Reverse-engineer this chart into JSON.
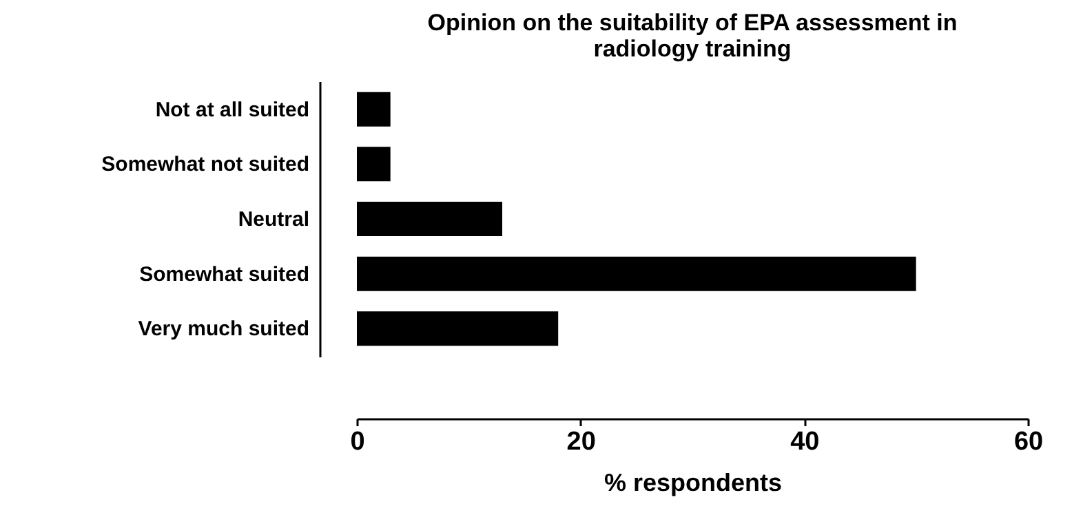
{
  "chart_data": {
    "type": "bar",
    "orientation": "horizontal",
    "title": "Opinion on the suitability of EPA assessment in\nradiology training",
    "xlabel": "% respondents",
    "categories": [
      "Not at all suited",
      "Somewhat not suited",
      "Neutral",
      "Somewhat suited",
      "Very much suited"
    ],
    "values": [
      3,
      3,
      13,
      50,
      18
    ],
    "color": "#000000",
    "xlim": [
      0,
      60
    ],
    "xticks": [
      0,
      20,
      40,
      60
    ],
    "grid": false
  }
}
